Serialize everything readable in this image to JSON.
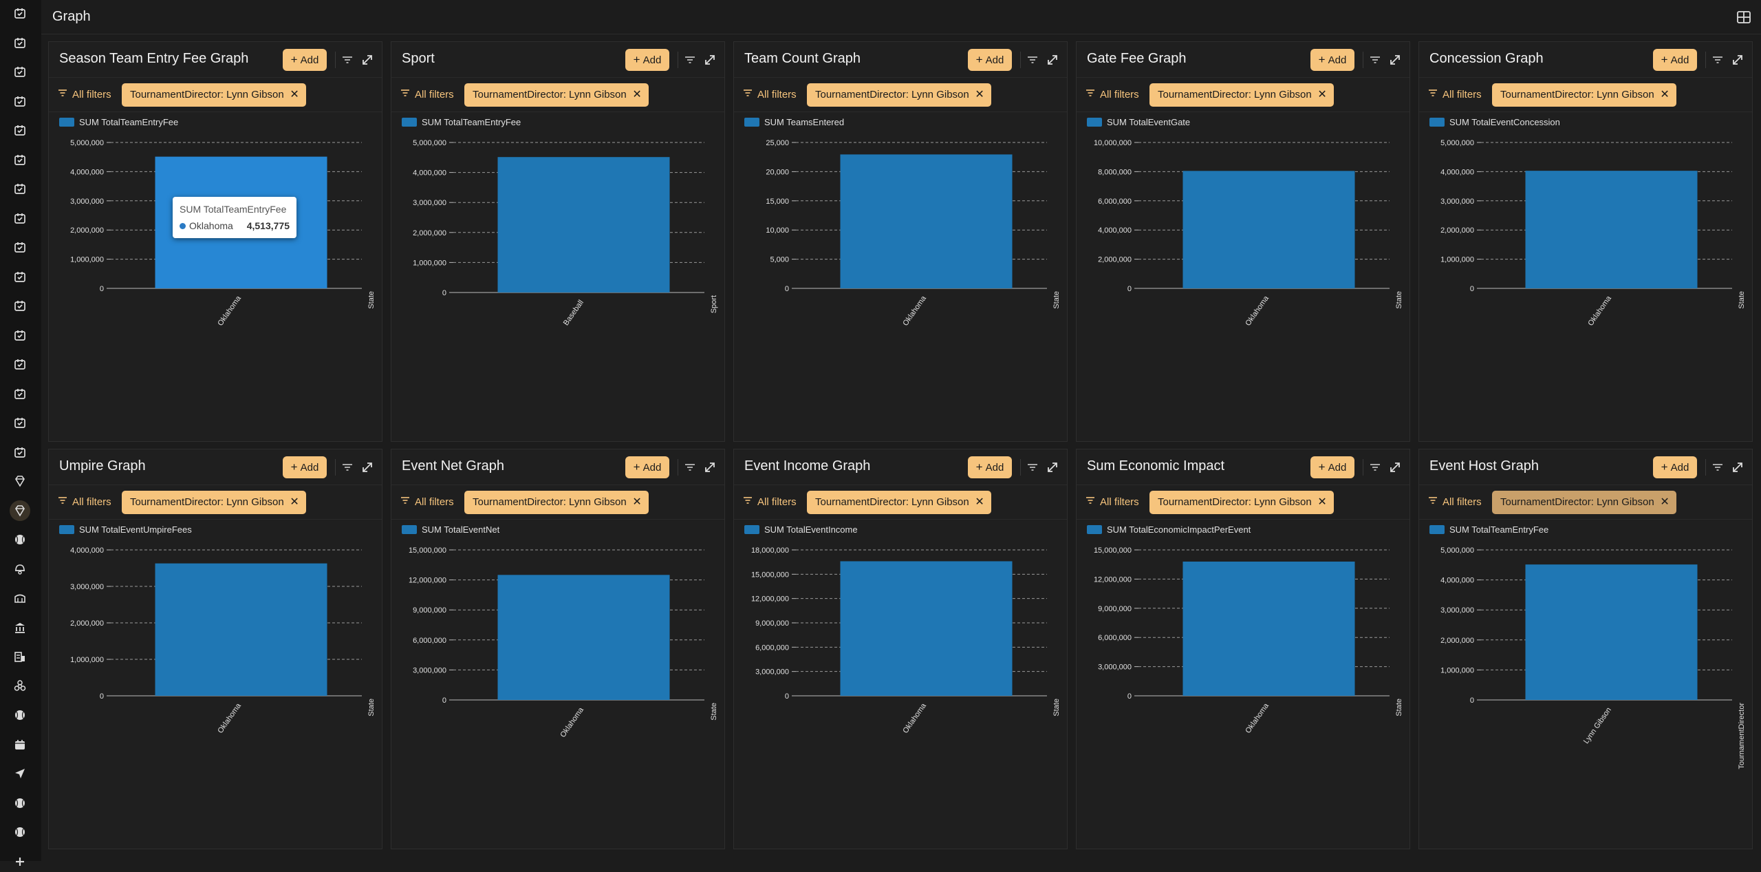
{
  "page": {
    "title": "Graph"
  },
  "sidebar": {
    "items": [
      {
        "icon": "calendar-check-icon"
      },
      {
        "icon": "calendar-check-icon"
      },
      {
        "icon": "calendar-check-icon"
      },
      {
        "icon": "calendar-check-icon"
      },
      {
        "icon": "calendar-check-icon"
      },
      {
        "icon": "calendar-check-icon"
      },
      {
        "icon": "calendar-check-icon"
      },
      {
        "icon": "calendar-check-icon"
      },
      {
        "icon": "calendar-check-icon"
      },
      {
        "icon": "calendar-check-icon"
      },
      {
        "icon": "calendar-check-icon"
      },
      {
        "icon": "calendar-check-icon"
      },
      {
        "icon": "calendar-check-icon"
      },
      {
        "icon": "calendar-check-icon"
      },
      {
        "icon": "calendar-check-icon"
      },
      {
        "icon": "calendar-check-icon"
      },
      {
        "icon": "diamond-icon"
      },
      {
        "icon": "diamond-icon",
        "active": true
      },
      {
        "icon": "baseball-icon"
      },
      {
        "icon": "helmet-icon"
      },
      {
        "icon": "stadium-icon"
      },
      {
        "icon": "bank-icon"
      },
      {
        "icon": "hotel-icon"
      },
      {
        "icon": "biohazard-icon"
      },
      {
        "icon": "baseball-icon"
      },
      {
        "icon": "calendar-icon"
      },
      {
        "icon": "send-icon"
      },
      {
        "icon": "baseball-icon"
      },
      {
        "icon": "baseball-icon"
      },
      {
        "icon": "plus-icon"
      }
    ]
  },
  "common": {
    "add_label": "Add",
    "all_filters_label": "All filters",
    "filter_chip": "TournamentDirector: Lynn Gibson",
    "bar_color": "#1f77b4",
    "accent_color": "#f6c47d"
  },
  "panels": [
    {
      "title": "Season Team Entry Fee Graph"
    },
    {
      "title": "Sport"
    },
    {
      "title": "Team Count Graph"
    },
    {
      "title": "Gate Fee Graph"
    },
    {
      "title": "Concession Graph"
    },
    {
      "title": "Umpire Graph"
    },
    {
      "title": "Event Net Graph"
    },
    {
      "title": "Event Income Graph"
    },
    {
      "title": "Sum Economic Impact"
    },
    {
      "title": "Event Host Graph"
    }
  ],
  "tooltip": {
    "title": "SUM TotalTeamEntryFee",
    "label": "Oklahoma",
    "value": "4,513,775"
  },
  "chart_data": [
    {
      "type": "bar",
      "legend": "SUM TotalTeamEntryFee",
      "categories": [
        "Oklahoma"
      ],
      "values": [
        4513775
      ],
      "ylim": [
        0,
        5000000
      ],
      "yticks": [
        "0",
        "1,000,000",
        "2,000,000",
        "3,000,000",
        "4,000,000",
        "5,000,000"
      ],
      "xlabel": "State"
    },
    {
      "type": "bar",
      "legend": "SUM TotalTeamEntryFee",
      "categories": [
        "Baseball"
      ],
      "values": [
        4513775
      ],
      "ylim": [
        0,
        5000000
      ],
      "yticks": [
        "0",
        "1,000,000",
        "2,000,000",
        "3,000,000",
        "4,000,000",
        "5,000,000"
      ],
      "xlabel": "Sport"
    },
    {
      "type": "bar",
      "legend": "SUM TeamsEntered",
      "categories": [
        "Oklahoma"
      ],
      "values": [
        22950
      ],
      "ylim": [
        0,
        25000
      ],
      "yticks": [
        "0",
        "5,000",
        "10,000",
        "15,000",
        "20,000",
        "25,000"
      ],
      "xlabel": "State"
    },
    {
      "type": "bar",
      "legend": "SUM TotalEventGate",
      "categories": [
        "Oklahoma"
      ],
      "values": [
        8050000
      ],
      "ylim": [
        0,
        10000000
      ],
      "yticks": [
        "0",
        "2,000,000",
        "4,000,000",
        "6,000,000",
        "8,000,000",
        "10,000,000"
      ],
      "xlabel": "State"
    },
    {
      "type": "bar",
      "legend": "SUM TotalEventConcession",
      "categories": [
        "Oklahoma"
      ],
      "values": [
        4030000
      ],
      "ylim": [
        0,
        5000000
      ],
      "yticks": [
        "0",
        "1,000,000",
        "2,000,000",
        "3,000,000",
        "4,000,000",
        "5,000,000"
      ],
      "xlabel": "State"
    },
    {
      "type": "bar",
      "legend": "SUM TotalEventUmpireFees",
      "categories": [
        "Oklahoma"
      ],
      "values": [
        3630000
      ],
      "ylim": [
        0,
        4000000
      ],
      "yticks": [
        "0",
        "1,000,000",
        "2,000,000",
        "3,000,000",
        "4,000,000"
      ],
      "xlabel": "State"
    },
    {
      "type": "bar",
      "legend": "SUM TotalEventNet",
      "categories": [
        "Oklahoma"
      ],
      "values": [
        12500000
      ],
      "ylim": [
        0,
        15000000
      ],
      "yticks": [
        "0",
        "3,000,000",
        "6,000,000",
        "9,000,000",
        "12,000,000",
        "15,000,000"
      ],
      "xlabel": "State"
    },
    {
      "type": "bar",
      "legend": "SUM TotalEventIncome",
      "categories": [
        "Oklahoma"
      ],
      "values": [
        16600000
      ],
      "ylim": [
        0,
        18000000
      ],
      "yticks": [
        "0",
        "3,000,000",
        "6,000,000",
        "9,000,000",
        "12,000,000",
        "15,000,000",
        "18,000,000"
      ],
      "xlabel": "State"
    },
    {
      "type": "bar",
      "legend": "SUM TotalEconomicImpactPerEvent",
      "categories": [
        "Oklahoma"
      ],
      "values": [
        13800000
      ],
      "ylim": [
        0,
        15000000
      ],
      "yticks": [
        "0",
        "3,000,000",
        "6,000,000",
        "9,000,000",
        "12,000,000",
        "15,000,000"
      ],
      "xlabel": "State"
    },
    {
      "type": "bar",
      "legend": "SUM TotalTeamEntryFee",
      "categories": [
        "Lynn Gibson"
      ],
      "values": [
        4513775
      ],
      "ylim": [
        0,
        5000000
      ],
      "yticks": [
        "0",
        "1,000,000",
        "2,000,000",
        "3,000,000",
        "4,000,000",
        "5,000,000"
      ],
      "xlabel": "TournamentDirector"
    }
  ]
}
